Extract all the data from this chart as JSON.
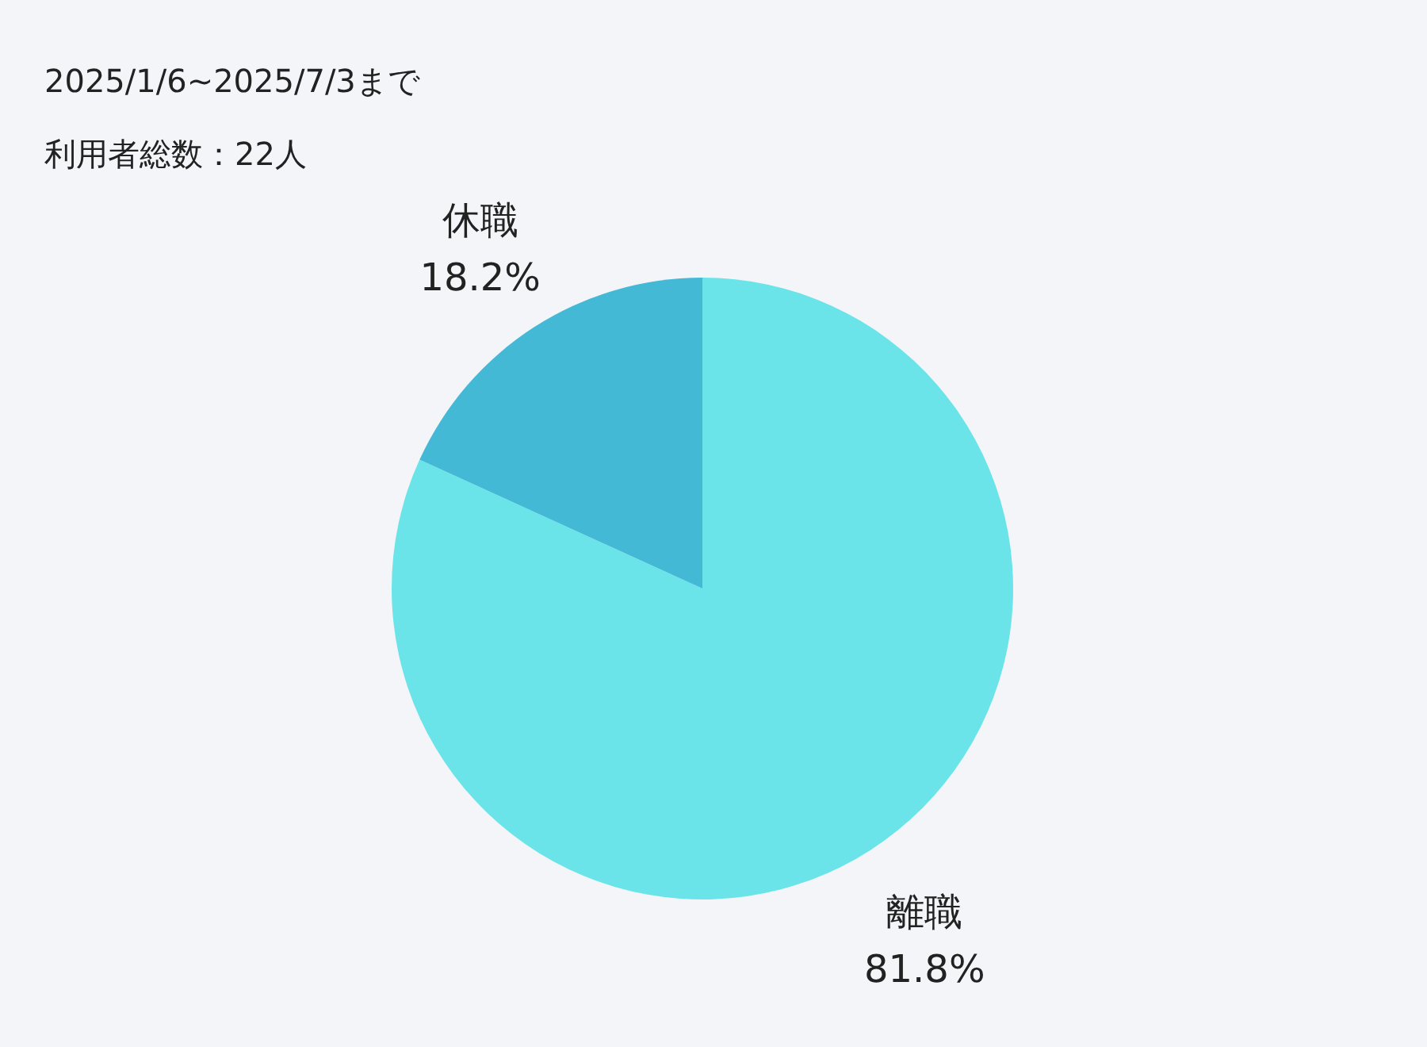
{
  "chart_data": {
    "type": "pie",
    "title": "2025/1/6~2025/7/3まで",
    "subtitle": "利用者総数：22人",
    "categories": [
      "離職",
      "休職"
    ],
    "values": [
      81.8,
      18.2
    ],
    "colors": [
      "#6ae4e9",
      "#43b9d6"
    ],
    "value_labels": [
      "81.8%",
      "18.2%"
    ],
    "legend": false
  }
}
